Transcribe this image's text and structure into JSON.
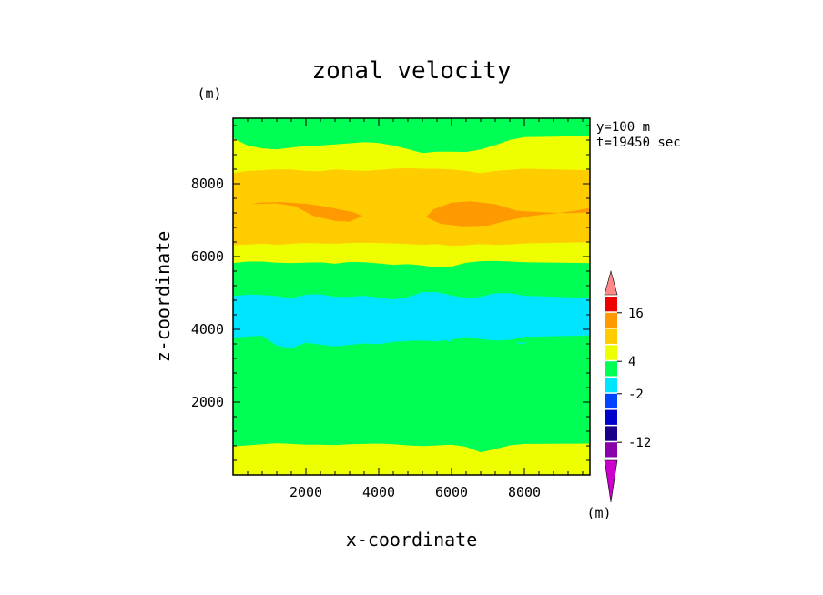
{
  "chart_data": {
    "type": "heatmap",
    "title": "zonal velocity",
    "xlabel": "x-coordinate",
    "ylabel": "z-coordinate",
    "y_unit_label": "(m)",
    "x_unit_label": "(m)",
    "annotations": [
      "y=100 m",
      "t=19450 sec"
    ],
    "xlim": [
      0,
      9800
    ],
    "ylim": [
      0,
      9800
    ],
    "x_ticks": [
      2000,
      4000,
      6000,
      8000
    ],
    "y_ticks": [
      2000,
      4000,
      6000,
      8000
    ],
    "colorbar": {
      "levels": [
        -16,
        -12,
        -8,
        -4,
        -2,
        2,
        4,
        8,
        12,
        16
      ],
      "colors": [
        "#cc00cc",
        "#8800aa",
        "#1a0088",
        "#0000cc",
        "#0044ff",
        "#00e5ff",
        "#00ff55",
        "#eeff00",
        "#ffcc00",
        "#ff9900",
        "#ee0000",
        "#ff8888"
      ],
      "shown_labels": [
        "16",
        "4",
        "-2",
        "-12"
      ],
      "label_level_index": [
        9,
        6,
        4,
        1
      ]
    },
    "bands": [
      {
        "name": "yellow-bottom",
        "color": "#eeff00",
        "bottom": [
          0,
          0,
          0,
          0,
          0,
          0,
          0,
          0,
          0,
          0,
          0,
          0,
          0,
          0,
          0,
          0,
          0,
          0,
          0,
          0,
          0,
          0
        ],
        "top": [
          800,
          820,
          850,
          880,
          860,
          840,
          840,
          830,
          850,
          860,
          870,
          850,
          820,
          800,
          820,
          840,
          780,
          630,
          720,
          820,
          860,
          870
        ]
      },
      {
        "name": "green-lower",
        "color": "#00ff55",
        "bottom": [
          800,
          820,
          850,
          880,
          860,
          840,
          840,
          830,
          850,
          860,
          870,
          850,
          820,
          800,
          820,
          840,
          780,
          630,
          720,
          820,
          860,
          870
        ],
        "top": [
          3780,
          3810,
          3830,
          3560,
          3490,
          3640,
          3590,
          3540,
          3580,
          3620,
          3600,
          3660,
          3690,
          3700,
          3680,
          3720,
          3800,
          3740,
          3700,
          3720,
          3800,
          3840
        ]
      },
      {
        "name": "cyan",
        "color": "#00e5ff",
        "bottom": [
          3780,
          3810,
          3830,
          3560,
          3490,
          3640,
          3590,
          3540,
          3580,
          3620,
          3600,
          3660,
          3690,
          3700,
          3680,
          3720,
          3800,
          3740,
          3700,
          3720,
          3800,
          3840
        ],
        "top": [
          4920,
          4960,
          4950,
          4920,
          4860,
          4960,
          4970,
          4900,
          4900,
          4930,
          4880,
          4830,
          4890,
          5030,
          5030,
          4940,
          4870,
          4900,
          5000,
          5000,
          4930,
          4870
        ]
      },
      {
        "name": "green-upper",
        "color": "#00ff55",
        "bottom": [
          4920,
          4960,
          4950,
          4920,
          4860,
          4960,
          4970,
          4900,
          4900,
          4930,
          4880,
          4830,
          4890,
          5030,
          5030,
          4940,
          4870,
          4900,
          5000,
          5000,
          4930,
          4870
        ],
        "top": [
          5830,
          5870,
          5870,
          5840,
          5830,
          5840,
          5850,
          5810,
          5860,
          5850,
          5820,
          5780,
          5800,
          5760,
          5710,
          5730,
          5840,
          5880,
          5890,
          5870,
          5850,
          5830
        ]
      },
      {
        "name": "yellow-mid",
        "color": "#eeff00",
        "bottom": [
          5830,
          5870,
          5870,
          5840,
          5830,
          5840,
          5850,
          5810,
          5860,
          5850,
          5820,
          5780,
          5800,
          5760,
          5710,
          5730,
          5840,
          5880,
          5890,
          5870,
          5850,
          5830
        ],
        "top": [
          6320,
          6340,
          6360,
          6330,
          6360,
          6380,
          6370,
          6360,
          6380,
          6390,
          6380,
          6370,
          6350,
          6330,
          6350,
          6300,
          6320,
          6350,
          6330,
          6340,
          6370,
          6400
        ]
      },
      {
        "name": "gold",
        "color": "#ffcc00",
        "bottom": [
          6320,
          6340,
          6360,
          6330,
          6360,
          6380,
          6370,
          6360,
          6380,
          6390,
          6380,
          6370,
          6350,
          6330,
          6350,
          6300,
          6320,
          6350,
          6330,
          6340,
          6370,
          6400
        ],
        "top": [
          8300,
          8360,
          8380,
          8400,
          8400,
          8360,
          8350,
          8400,
          8380,
          8360,
          8390,
          8420,
          8440,
          8420,
          8420,
          8400,
          8360,
          8300,
          8360,
          8390,
          8420,
          8380
        ]
      },
      {
        "name": "yellow-top",
        "color": "#eeff00",
        "bottom": [
          8300,
          8360,
          8380,
          8400,
          8400,
          8360,
          8350,
          8400,
          8380,
          8360,
          8390,
          8420,
          8440,
          8420,
          8420,
          8400,
          8360,
          8300,
          8360,
          8390,
          8420,
          8380
        ],
        "top": [
          9260,
          9060,
          8980,
          8950,
          9000,
          9050,
          9060,
          9090,
          9120,
          9150,
          9130,
          9060,
          8960,
          8850,
          8890,
          8890,
          8880,
          8950,
          9070,
          9210,
          9290,
          9320
        ]
      },
      {
        "name": "green-top",
        "color": "#00ff55",
        "bottom": [
          9260,
          9060,
          8980,
          8950,
          9000,
          9050,
          9060,
          9090,
          9120,
          9150,
          9130,
          9060,
          8960,
          8850,
          8890,
          8890,
          8880,
          8950,
          9070,
          9210,
          9290,
          9320
        ],
        "top": [
          9800,
          9800,
          9800,
          9800,
          9800,
          9800,
          9800,
          9800,
          9800,
          9800,
          9800,
          9800,
          9800,
          9800,
          9800,
          9800,
          9800,
          9800,
          9800,
          9800,
          9800,
          9800
        ]
      }
    ],
    "band_x": [
      0,
      400,
      800,
      1200,
      1600,
      2000,
      2400,
      2800,
      3200,
      3600,
      4000,
      4400,
      4800,
      5200,
      5600,
      6000,
      6400,
      6800,
      7200,
      7600,
      8000,
      9800
    ],
    "orange_patches": [
      {
        "name": "orange-left",
        "color": "#ff9900",
        "outline": [
          [
            500,
            7440
          ],
          [
            1200,
            7460
          ],
          [
            1700,
            7380
          ],
          [
            2200,
            7120
          ],
          [
            2800,
            6980
          ],
          [
            3200,
            6960
          ],
          [
            3550,
            7120
          ],
          [
            3300,
            7220
          ],
          [
            2900,
            7300
          ],
          [
            2500,
            7380
          ],
          [
            2000,
            7450
          ],
          [
            1300,
            7500
          ],
          [
            700,
            7480
          ]
        ]
      },
      {
        "name": "orange-right",
        "color": "#ff9900",
        "outline": [
          [
            5300,
            7080
          ],
          [
            5700,
            6900
          ],
          [
            6300,
            6830
          ],
          [
            7000,
            6850
          ],
          [
            7500,
            6980
          ],
          [
            8200,
            7120
          ],
          [
            8800,
            7180
          ],
          [
            9400,
            7260
          ],
          [
            9800,
            7340
          ],
          [
            9800,
            7220
          ],
          [
            9200,
            7190
          ],
          [
            8500,
            7220
          ],
          [
            7800,
            7260
          ],
          [
            7200,
            7440
          ],
          [
            6500,
            7520
          ],
          [
            6000,
            7480
          ],
          [
            5500,
            7300
          ]
        ]
      }
    ],
    "cyan_notches": [
      {
        "name": "cyan-notch",
        "color": "#00e5ff",
        "outline": [
          [
            5800,
            3790
          ],
          [
            5900,
            3660
          ],
          [
            6000,
            3700
          ],
          [
            5930,
            3780
          ]
        ]
      },
      {
        "name": "cyan-dash",
        "color": "#00e5ff",
        "outline": [
          [
            7800,
            3600
          ],
          [
            8050,
            3610
          ],
          [
            8050,
            3640
          ],
          [
            7800,
            3630
          ]
        ]
      }
    ]
  }
}
